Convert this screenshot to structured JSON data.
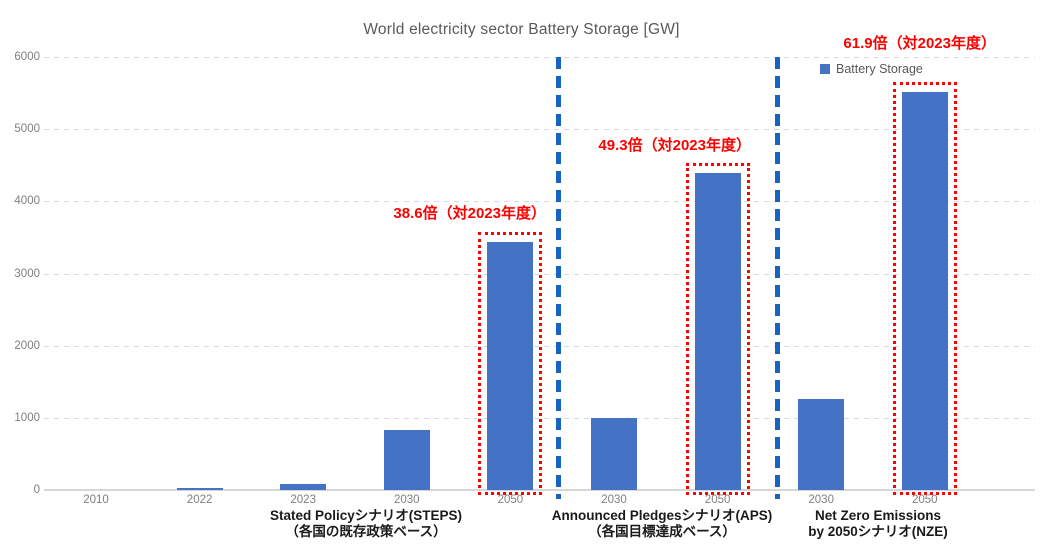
{
  "legend": {
    "label": "Battery Storage",
    "color": "#4472C4"
  },
  "colors": {
    "bar": "#4472C4",
    "separator": "#1565C0",
    "annotation": "#FF0000",
    "gridline": "#D9D9D9",
    "axis_text": "#7F7F7F",
    "title_text": "#595959"
  },
  "chart_data": {
    "type": "bar",
    "title": "World electricity sector Battery Storage [GW]",
    "xlabel": "",
    "ylabel": "GW",
    "ylim": [
      0,
      6000
    ],
    "y_ticks": [
      0,
      1000,
      2000,
      3000,
      4000,
      5000,
      6000
    ],
    "grid": "horizontal-dashed",
    "legend_position": "top-right",
    "series_name": "Battery Storage",
    "groups": [
      {
        "name": "STEPS",
        "label_lines": [
          "Stated Policyシナリオ(STEPS)",
          "（各国の既存政策ベース）"
        ],
        "annotation": "38.6倍（対2023年度）",
        "bars": [
          {
            "year": "2010",
            "value": 1,
            "highlighted": false
          },
          {
            "year": "2022",
            "value": 28,
            "highlighted": false
          },
          {
            "year": "2023",
            "value": 89,
            "highlighted": false
          },
          {
            "year": "2030",
            "value": 830,
            "highlighted": false
          },
          {
            "year": "2050",
            "value": 3435,
            "highlighted": true
          }
        ]
      },
      {
        "name": "APS",
        "label_lines": [
          "Announced Pledgesシナリオ(APS)",
          "（各国目標達成ベース）"
        ],
        "annotation": "49.3倍（対2023年度）",
        "bars": [
          {
            "year": "2030",
            "value": 1000,
            "highlighted": false
          },
          {
            "year": "2050",
            "value": 4390,
            "highlighted": true
          }
        ]
      },
      {
        "name": "NZE",
        "label_lines": [
          "Net Zero Emissions",
          "by 2050シナリオ(NZE)"
        ],
        "annotation": "61.9倍（対2023年度）",
        "bars": [
          {
            "year": "2030",
            "value": 1260,
            "highlighted": false
          },
          {
            "year": "2050",
            "value": 5510,
            "highlighted": true
          }
        ]
      }
    ]
  }
}
